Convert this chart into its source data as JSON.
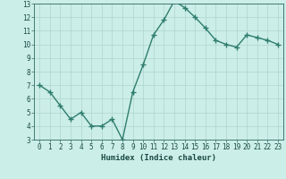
{
  "x": [
    0,
    1,
    2,
    3,
    4,
    5,
    6,
    7,
    8,
    9,
    10,
    11,
    12,
    13,
    14,
    15,
    16,
    17,
    18,
    19,
    20,
    21,
    22,
    23
  ],
  "y": [
    7.0,
    6.5,
    5.5,
    4.5,
    5.0,
    4.0,
    4.0,
    4.5,
    3.0,
    6.5,
    8.5,
    10.7,
    11.8,
    13.2,
    12.7,
    12.0,
    11.2,
    10.3,
    10.0,
    9.8,
    10.7,
    10.5,
    10.3,
    10.0
  ],
  "xlabel": "Humidex (Indice chaleur)",
  "line_color": "#2e7d6e",
  "marker": "+",
  "marker_size": 4,
  "line_width": 1.0,
  "bg_color": "#cceee8",
  "grid_color": "#aed4ce",
  "ylim": [
    3,
    13
  ],
  "xlim": [
    -0.5,
    23.5
  ],
  "yticks": [
    3,
    4,
    5,
    6,
    7,
    8,
    9,
    10,
    11,
    12,
    13
  ],
  "xticks": [
    0,
    1,
    2,
    3,
    4,
    5,
    6,
    7,
    8,
    9,
    10,
    11,
    12,
    13,
    14,
    15,
    16,
    17,
    18,
    19,
    20,
    21,
    22,
    23
  ],
  "tick_label_size": 5.5,
  "xlabel_size": 6.5,
  "tick_color": "#2e6860",
  "label_color": "#1a4a44"
}
